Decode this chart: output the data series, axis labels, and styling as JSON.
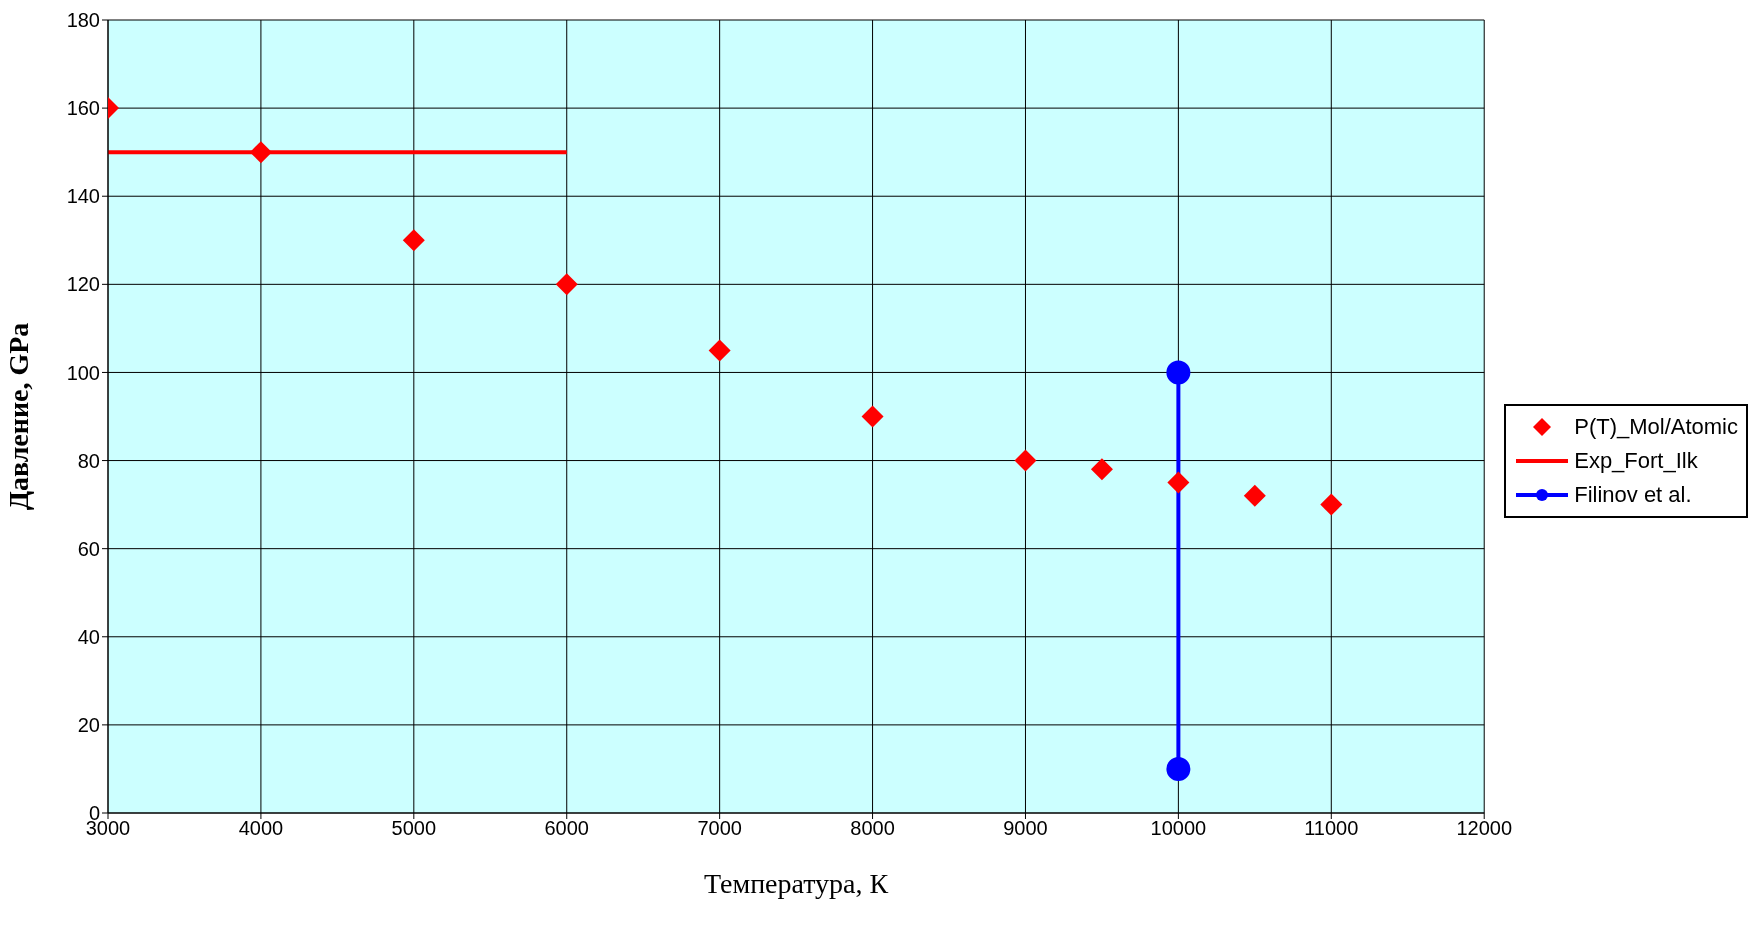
{
  "chart_data": {
    "type": "scatter",
    "xlabel": "Температура, К",
    "ylabel": "Давление, GPa",
    "xlim": [
      3000,
      12000
    ],
    "xticks": [
      3000,
      4000,
      5000,
      6000,
      7000,
      8000,
      9000,
      10000,
      11000,
      12000
    ],
    "ylim": [
      0,
      180
    ],
    "yticks": [
      0,
      20,
      40,
      60,
      80,
      100,
      120,
      140,
      160,
      180
    ],
    "grid": true,
    "legend": "right",
    "series": [
      {
        "name": "P(T)_Mol/Atomic",
        "color": "#ff0000",
        "marker": "diamond",
        "x": [
          3000,
          4000,
          5000,
          6000,
          7000,
          8000,
          9000,
          9500,
          10000,
          10500,
          11000
        ],
        "values": [
          160,
          150,
          130,
          120,
          105,
          90,
          80,
          78,
          75,
          72,
          70
        ]
      },
      {
        "name": "Exp_Fort_Ilk",
        "type": "line",
        "color": "#ff0000",
        "marker": "none",
        "x": [
          3000,
          6000
        ],
        "values": [
          150,
          150
        ]
      },
      {
        "name": "Filinov et al.",
        "type": "line",
        "color": "#0000ff",
        "marker": "circle",
        "x": [
          10000,
          10000
        ],
        "values": [
          100,
          10
        ]
      }
    ]
  }
}
